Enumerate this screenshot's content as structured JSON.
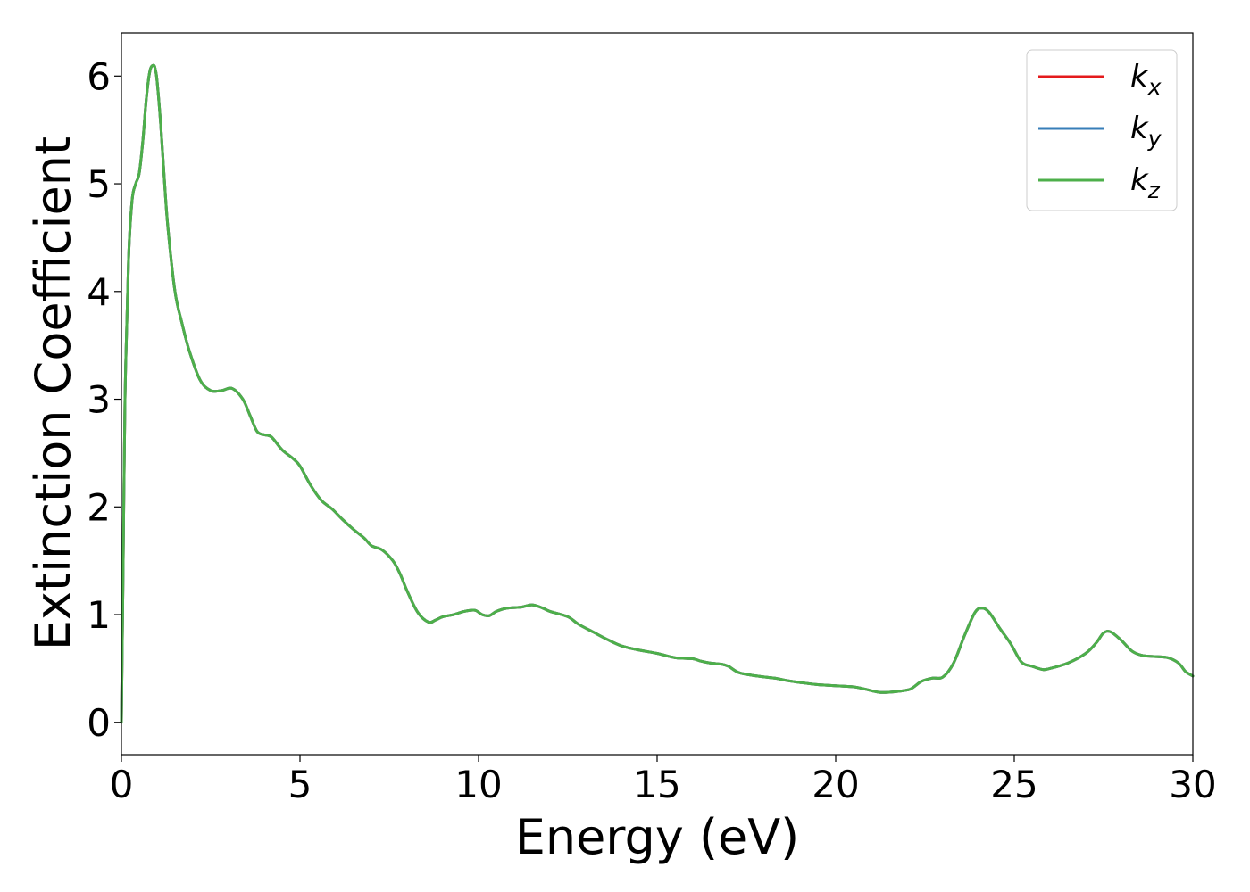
{
  "chart_data": {
    "type": "line",
    "xlabel": "Energy (eV)",
    "ylabel": "Extinction Coefficient",
    "xlim": [
      0,
      30
    ],
    "ylim": [
      -0.3,
      6.4
    ],
    "xticks": [
      0,
      5,
      10,
      15,
      20,
      25,
      30
    ],
    "yticks": [
      0,
      1,
      2,
      3,
      4,
      5,
      6
    ],
    "grid": false,
    "legend_position": "top-right",
    "series": [
      {
        "name": "k",
        "subscript": "x",
        "color": "#e41a1c",
        "x": [
          0,
          0.05,
          0.1,
          0.2,
          0.3,
          0.4,
          0.5,
          0.6,
          0.7,
          0.8,
          0.9,
          0.95,
          1.0,
          1.1,
          1.2,
          1.3,
          1.5,
          1.7,
          1.9,
          2.2,
          2.5,
          2.8,
          3.1,
          3.4,
          3.6,
          3.8,
          4.0,
          4.2,
          4.5,
          4.8,
          5.0,
          5.3,
          5.6,
          5.9,
          6.2,
          6.5,
          6.8,
          7.0,
          7.3,
          7.6,
          7.8,
          8.0,
          8.3,
          8.6,
          8.8,
          9.0,
          9.3,
          9.6,
          9.9,
          10.1,
          10.3,
          10.5,
          10.8,
          11.2,
          11.5,
          11.8,
          12.0,
          12.5,
          12.8,
          13.2,
          13.6,
          14.0,
          14.5,
          15.0,
          15.5,
          16.0,
          16.2,
          16.5,
          16.8,
          17.0,
          17.3,
          17.8,
          18.3,
          18.6,
          19.0,
          19.5,
          20.0,
          20.5,
          20.8,
          21.2,
          21.5,
          21.8,
          22.1,
          22.4,
          22.7,
          23.0,
          23.3,
          23.6,
          23.9,
          24.1,
          24.3,
          24.6,
          24.9,
          25.2,
          25.5,
          25.8,
          26.0,
          26.5,
          27.0,
          27.3,
          27.5,
          27.7,
          28.0,
          28.3,
          28.6,
          29.0,
          29.3,
          29.6,
          29.8,
          30.0
        ],
        "y": [
          0.0,
          1.5,
          3.0,
          4.3,
          4.85,
          5.0,
          5.1,
          5.4,
          5.8,
          6.05,
          6.1,
          6.06,
          5.95,
          5.55,
          5.05,
          4.6,
          4.0,
          3.7,
          3.45,
          3.18,
          3.08,
          3.08,
          3.1,
          3.0,
          2.85,
          2.7,
          2.67,
          2.65,
          2.53,
          2.45,
          2.38,
          2.2,
          2.06,
          1.98,
          1.88,
          1.79,
          1.71,
          1.64,
          1.6,
          1.5,
          1.38,
          1.22,
          1.02,
          0.93,
          0.95,
          0.98,
          1.0,
          1.03,
          1.04,
          1.0,
          0.99,
          1.03,
          1.06,
          1.07,
          1.09,
          1.06,
          1.03,
          0.98,
          0.91,
          0.84,
          0.77,
          0.71,
          0.67,
          0.64,
          0.6,
          0.59,
          0.57,
          0.55,
          0.54,
          0.52,
          0.46,
          0.43,
          0.41,
          0.39,
          0.37,
          0.35,
          0.34,
          0.33,
          0.31,
          0.28,
          0.28,
          0.29,
          0.31,
          0.38,
          0.41,
          0.42,
          0.55,
          0.8,
          1.02,
          1.06,
          1.02,
          0.87,
          0.73,
          0.56,
          0.52,
          0.49,
          0.5,
          0.55,
          0.64,
          0.74,
          0.83,
          0.84,
          0.76,
          0.66,
          0.62,
          0.61,
          0.6,
          0.55,
          0.47,
          0.43
        ]
      },
      {
        "name": "k",
        "subscript": "y",
        "color": "#377eb8",
        "x": [
          0,
          0.05,
          0.1,
          0.2,
          0.3,
          0.4,
          0.5,
          0.6,
          0.7,
          0.8,
          0.9,
          0.95,
          1.0,
          1.1,
          1.2,
          1.3,
          1.5,
          1.7,
          1.9,
          2.2,
          2.5,
          2.8,
          3.1,
          3.4,
          3.6,
          3.8,
          4.0,
          4.2,
          4.5,
          4.8,
          5.0,
          5.3,
          5.6,
          5.9,
          6.2,
          6.5,
          6.8,
          7.0,
          7.3,
          7.6,
          7.8,
          8.0,
          8.3,
          8.6,
          8.8,
          9.0,
          9.3,
          9.6,
          9.9,
          10.1,
          10.3,
          10.5,
          10.8,
          11.2,
          11.5,
          11.8,
          12.0,
          12.5,
          12.8,
          13.2,
          13.6,
          14.0,
          14.5,
          15.0,
          15.5,
          16.0,
          16.2,
          16.5,
          16.8,
          17.0,
          17.3,
          17.8,
          18.3,
          18.6,
          19.0,
          19.5,
          20.0,
          20.5,
          20.8,
          21.2,
          21.5,
          21.8,
          22.1,
          22.4,
          22.7,
          23.0,
          23.3,
          23.6,
          23.9,
          24.1,
          24.3,
          24.6,
          24.9,
          25.2,
          25.5,
          25.8,
          26.0,
          26.5,
          27.0,
          27.3,
          27.5,
          27.7,
          28.0,
          28.3,
          28.6,
          29.0,
          29.3,
          29.6,
          29.8,
          30.0
        ],
        "y": [
          0.0,
          1.5,
          3.0,
          4.3,
          4.85,
          5.0,
          5.1,
          5.4,
          5.8,
          6.05,
          6.1,
          6.06,
          5.95,
          5.55,
          5.05,
          4.6,
          4.0,
          3.7,
          3.45,
          3.18,
          3.08,
          3.08,
          3.1,
          3.0,
          2.85,
          2.7,
          2.67,
          2.65,
          2.53,
          2.45,
          2.38,
          2.2,
          2.06,
          1.98,
          1.88,
          1.79,
          1.71,
          1.64,
          1.6,
          1.5,
          1.38,
          1.22,
          1.02,
          0.93,
          0.95,
          0.98,
          1.0,
          1.03,
          1.04,
          1.0,
          0.99,
          1.03,
          1.06,
          1.07,
          1.09,
          1.06,
          1.03,
          0.98,
          0.91,
          0.84,
          0.77,
          0.71,
          0.67,
          0.64,
          0.6,
          0.59,
          0.57,
          0.55,
          0.54,
          0.52,
          0.46,
          0.43,
          0.41,
          0.39,
          0.37,
          0.35,
          0.34,
          0.33,
          0.31,
          0.28,
          0.28,
          0.29,
          0.31,
          0.38,
          0.41,
          0.42,
          0.55,
          0.8,
          1.02,
          1.06,
          1.02,
          0.87,
          0.73,
          0.56,
          0.52,
          0.49,
          0.5,
          0.55,
          0.64,
          0.74,
          0.83,
          0.84,
          0.76,
          0.66,
          0.62,
          0.61,
          0.6,
          0.55,
          0.47,
          0.43
        ]
      },
      {
        "name": "k",
        "subscript": "z",
        "color": "#4daf4a",
        "x": [
          0,
          0.05,
          0.1,
          0.2,
          0.3,
          0.4,
          0.5,
          0.6,
          0.7,
          0.8,
          0.9,
          0.95,
          1.0,
          1.1,
          1.2,
          1.3,
          1.5,
          1.7,
          1.9,
          2.2,
          2.5,
          2.8,
          3.1,
          3.4,
          3.6,
          3.8,
          4.0,
          4.2,
          4.5,
          4.8,
          5.0,
          5.3,
          5.6,
          5.9,
          6.2,
          6.5,
          6.8,
          7.0,
          7.3,
          7.6,
          7.8,
          8.0,
          8.3,
          8.6,
          8.8,
          9.0,
          9.3,
          9.6,
          9.9,
          10.1,
          10.3,
          10.5,
          10.8,
          11.2,
          11.5,
          11.8,
          12.0,
          12.5,
          12.8,
          13.2,
          13.6,
          14.0,
          14.5,
          15.0,
          15.5,
          16.0,
          16.2,
          16.5,
          16.8,
          17.0,
          17.3,
          17.8,
          18.3,
          18.6,
          19.0,
          19.5,
          20.0,
          20.5,
          20.8,
          21.2,
          21.5,
          21.8,
          22.1,
          22.4,
          22.7,
          23.0,
          23.3,
          23.6,
          23.9,
          24.1,
          24.3,
          24.6,
          24.9,
          25.2,
          25.5,
          25.8,
          26.0,
          26.5,
          27.0,
          27.3,
          27.5,
          27.7,
          28.0,
          28.3,
          28.6,
          29.0,
          29.3,
          29.6,
          29.8,
          30.0
        ],
        "y": [
          0.0,
          1.5,
          3.0,
          4.3,
          4.85,
          5.0,
          5.1,
          5.4,
          5.8,
          6.05,
          6.1,
          6.06,
          5.95,
          5.55,
          5.05,
          4.6,
          4.0,
          3.7,
          3.45,
          3.18,
          3.08,
          3.08,
          3.1,
          3.0,
          2.85,
          2.7,
          2.67,
          2.65,
          2.53,
          2.45,
          2.38,
          2.2,
          2.06,
          1.98,
          1.88,
          1.79,
          1.71,
          1.64,
          1.6,
          1.5,
          1.38,
          1.22,
          1.02,
          0.93,
          0.95,
          0.98,
          1.0,
          1.03,
          1.04,
          1.0,
          0.99,
          1.03,
          1.06,
          1.07,
          1.09,
          1.06,
          1.03,
          0.98,
          0.91,
          0.84,
          0.77,
          0.71,
          0.67,
          0.64,
          0.6,
          0.59,
          0.57,
          0.55,
          0.54,
          0.52,
          0.46,
          0.43,
          0.41,
          0.39,
          0.37,
          0.35,
          0.34,
          0.33,
          0.31,
          0.28,
          0.28,
          0.29,
          0.31,
          0.38,
          0.41,
          0.42,
          0.55,
          0.8,
          1.02,
          1.06,
          1.02,
          0.87,
          0.73,
          0.56,
          0.52,
          0.49,
          0.5,
          0.55,
          0.64,
          0.74,
          0.83,
          0.84,
          0.76,
          0.66,
          0.62,
          0.61,
          0.6,
          0.55,
          0.47,
          0.43
        ]
      }
    ]
  }
}
